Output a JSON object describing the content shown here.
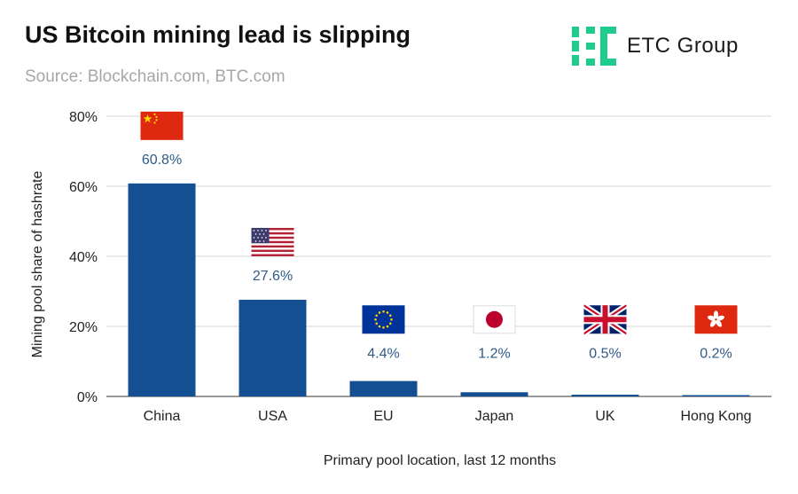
{
  "header": {
    "title": "US Bitcoin mining lead is slipping",
    "subtitle": "Source: Blockchain.com, BTC.com"
  },
  "logo": {
    "text": "ETC Group",
    "color": "#1fcc8e"
  },
  "colors": {
    "bar": "#134f91",
    "grid": "#d6d6d6",
    "data_label": "#2f5b86"
  },
  "chart_data": {
    "type": "bar",
    "title": "US Bitcoin mining lead is slipping",
    "xlabel": "Primary pool location, last 12 months",
    "ylabel": "Mining pool share of hashrate",
    "ylim": [
      0,
      80
    ],
    "yticks": [
      0,
      20,
      40,
      60,
      80
    ],
    "ytick_labels": [
      "0%",
      "20%",
      "40%",
      "60%",
      "80%"
    ],
    "grid": true,
    "categories": [
      "China",
      "USA",
      "EU",
      "Japan",
      "UK",
      "Hong Kong"
    ],
    "values": [
      60.8,
      27.6,
      4.4,
      1.2,
      0.5,
      0.2
    ],
    "data_labels": [
      "60.8%",
      "27.6%",
      "4.4%",
      "1.2%",
      "0.5%",
      "0.2%"
    ],
    "flags": [
      "china-flag-icon",
      "usa-flag-icon",
      "eu-flag-icon",
      "japan-flag-icon",
      "uk-flag-icon",
      "hong-kong-flag-icon"
    ]
  }
}
